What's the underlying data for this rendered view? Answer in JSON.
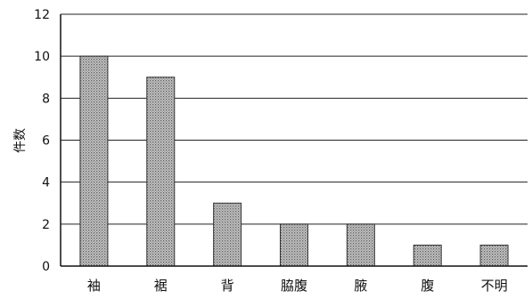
{
  "chart_data": {
    "type": "bar",
    "categories": [
      "袖",
      "裾",
      "背",
      "脇腹",
      "腋",
      "腹",
      "不明"
    ],
    "values": [
      10,
      9,
      3,
      2,
      2,
      1,
      1
    ],
    "title": "",
    "xlabel": "",
    "ylabel": "件数",
    "ylim": [
      0,
      12
    ],
    "yticks": [
      0,
      2,
      4,
      6,
      8,
      10,
      12
    ],
    "yticklabels": [
      "0",
      "2",
      "4",
      "6",
      "8",
      "10",
      "12"
    ],
    "grid": true,
    "legend": "none",
    "bar_color": "#a9a9a9",
    "bar_pattern": "dotted-halftone"
  }
}
